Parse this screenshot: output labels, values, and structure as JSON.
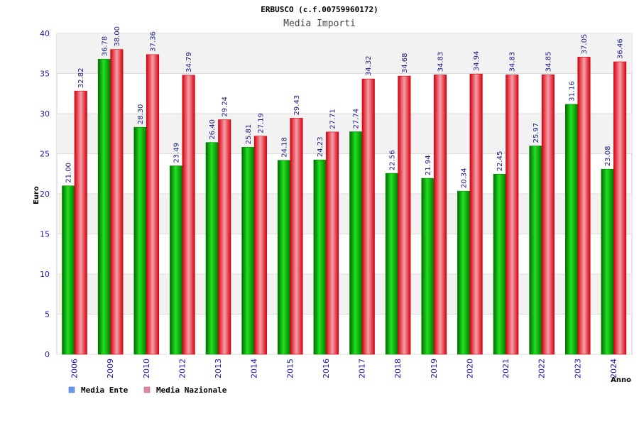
{
  "chart_data": {
    "type": "bar",
    "title": "ERBUSCO (c.f.00759960172)",
    "subtitle": "Media Importi",
    "xlabel": "Anno",
    "ylabel": "Euro",
    "ylim": [
      0,
      40
    ],
    "yticks": [
      "0",
      "5",
      "10",
      "15",
      "20",
      "25",
      "30",
      "35",
      "40"
    ],
    "grid": true,
    "legend_position": "bottom-left",
    "categories": [
      "2006",
      "2009",
      "2010",
      "2012",
      "2013",
      "2014",
      "2015",
      "2016",
      "2017",
      "2018",
      "2019",
      "2020",
      "2021",
      "2022",
      "2023",
      "2024"
    ],
    "series": [
      {
        "name": "Media Ente",
        "color": "#00b000",
        "legend_color": "#6699ee",
        "values": [
          21.0,
          36.78,
          28.3,
          23.49,
          26.4,
          25.81,
          24.18,
          24.23,
          27.74,
          22.56,
          21.94,
          20.34,
          22.45,
          25.97,
          31.16,
          23.08
        ],
        "labels": [
          "21.00",
          "36.78",
          "28.30",
          "23.49",
          "26.40",
          "25.81",
          "24.18",
          "24.23",
          "27.74",
          "22.56",
          "21.94",
          "20.34",
          "22.45",
          "25.97",
          "31.16",
          "23.08"
        ]
      },
      {
        "name": "Media Nazionale",
        "color": "#e00010",
        "legend_color": "#dd88aa",
        "values": [
          32.82,
          38.0,
          37.36,
          34.79,
          29.24,
          27.19,
          29.43,
          27.71,
          34.32,
          34.68,
          34.83,
          34.94,
          34.83,
          34.85,
          37.05,
          36.46
        ],
        "labels": [
          "32.82",
          "38.00",
          "37.36",
          "34.79",
          "29.24",
          "27.19",
          "29.43",
          "27.71",
          "34.32",
          "34.68",
          "34.83",
          "34.94",
          "34.83",
          "34.85",
          "37.05",
          "36.46"
        ]
      }
    ]
  }
}
